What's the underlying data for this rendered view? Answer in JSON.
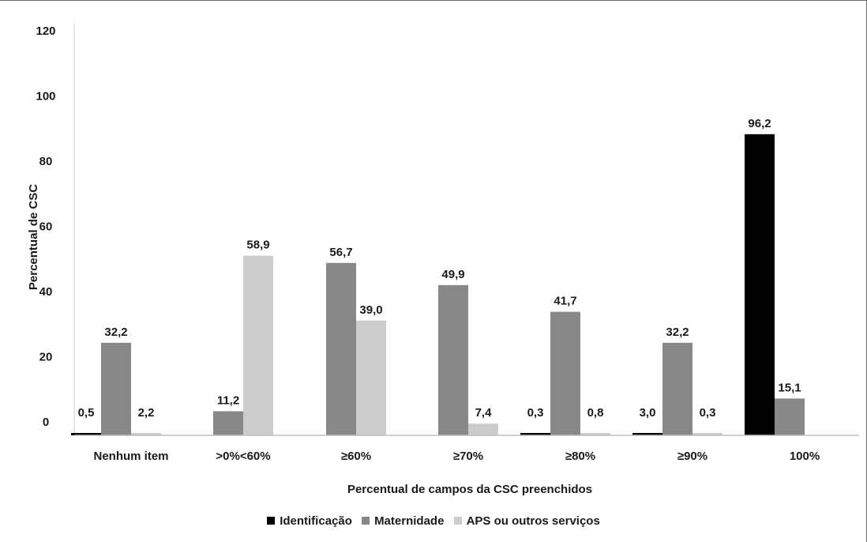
{
  "chart_data": {
    "type": "bar",
    "categories": [
      "Nenhum item",
      ">0%<60%",
      "≥60%",
      "≥70%",
      "≥80%",
      "≥90%",
      "100%"
    ],
    "series": [
      {
        "name": "Identificação",
        "color": "#000000",
        "values": [
          0.5,
          null,
          null,
          null,
          0.3,
          3.0,
          96.2
        ],
        "labels": [
          "0,5",
          "",
          "",
          "",
          "0,3",
          "3,0",
          "96,2"
        ]
      },
      {
        "name": "Maternidade",
        "color": "#888888",
        "values": [
          32.2,
          11.2,
          56.7,
          49.9,
          41.7,
          32.2,
          15.1
        ],
        "labels": [
          "32,2",
          "11,2",
          "56,7",
          "49,9",
          "41,7",
          "32,2",
          "15,1"
        ]
      },
      {
        "name": "APS ou outros serviços",
        "color": "#cccccc",
        "values": [
          2.2,
          58.9,
          39.0,
          7.4,
          0.8,
          0.3,
          null
        ],
        "labels": [
          "2,2",
          "58,9",
          "39,0",
          "7,4",
          "0,8",
          "0,3",
          ""
        ]
      }
    ],
    "yticks": [
      "120",
      "100",
      "80",
      "60",
      "40",
      "20",
      "0"
    ],
    "ylim": [
      0,
      120
    ],
    "xlabel": "Percentual de campos da CSC preenchidos",
    "ylabel": "Percentual de CSC",
    "legend_position": "bottom"
  }
}
